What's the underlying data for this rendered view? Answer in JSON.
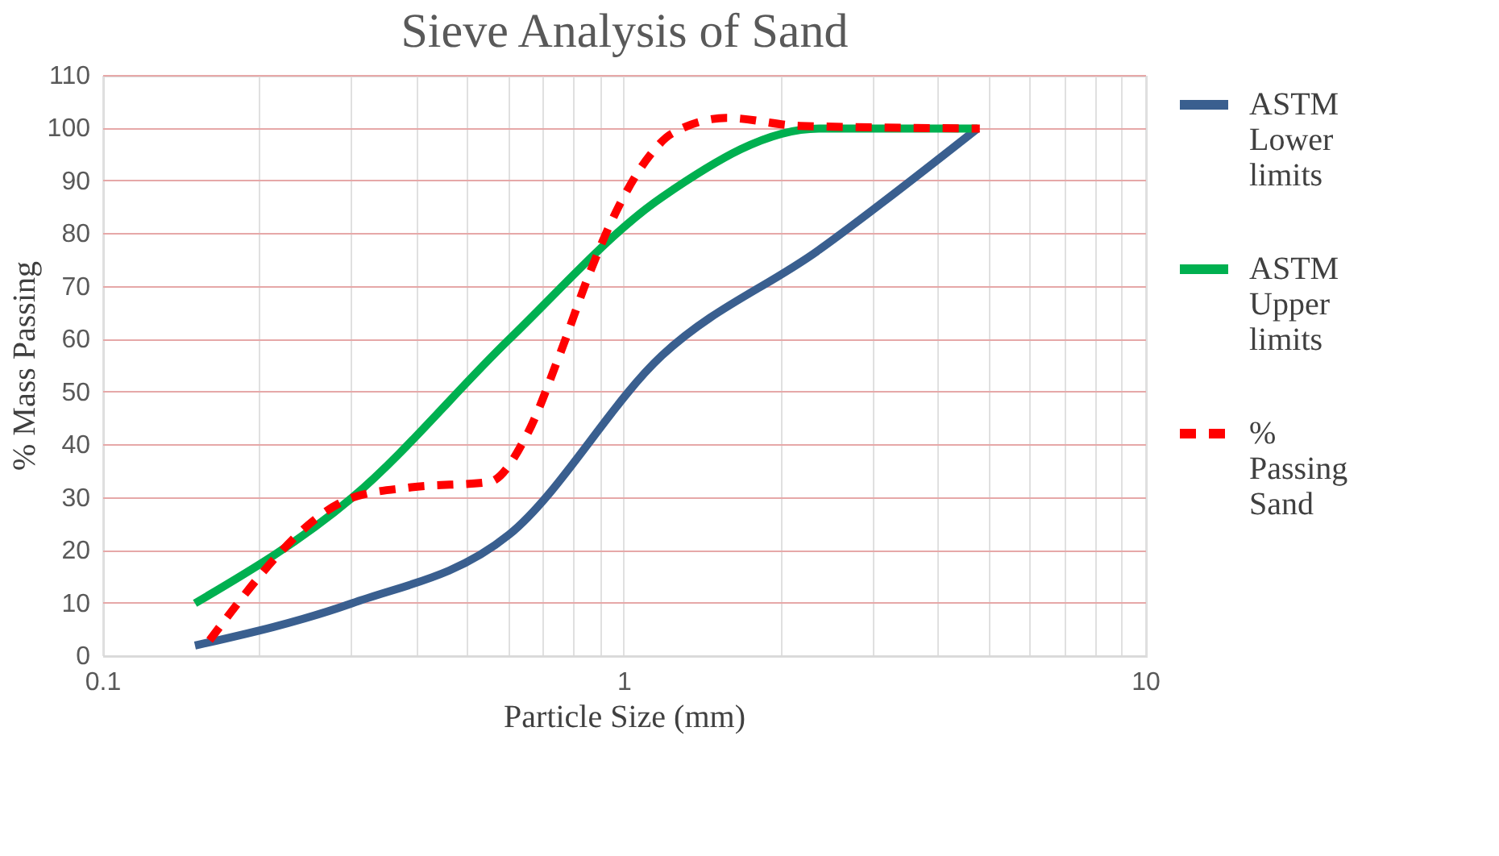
{
  "chart_data": {
    "type": "line",
    "title": "Sieve Analysis of Sand",
    "xlabel": "Particle Size (mm)",
    "ylabel": "% Mass Passing",
    "log": "x",
    "xlim": [
      0.1,
      10
    ],
    "xticks": [
      0.1,
      {
        "value": 0.2,
        "label": null
      },
      {
        "value": 0.3,
        "label": null
      },
      {
        "value": 0.4,
        "label": null
      },
      {
        "value": 0.5,
        "label": null
      },
      {
        "value": 0.6,
        "label": null
      },
      {
        "value": 0.7,
        "label": null
      },
      {
        "value": 0.8,
        "label": null
      },
      {
        "value": 0.9,
        "label": null
      },
      1,
      {
        "value": 2,
        "label": null
      },
      {
        "value": 3,
        "label": null
      },
      {
        "value": 4,
        "label": null
      },
      {
        "value": 5,
        "label": null
      },
      {
        "value": 6,
        "label": null
      },
      {
        "value": 7,
        "label": null
      },
      {
        "value": 8,
        "label": null
      },
      {
        "value": 9,
        "label": null
      },
      10
    ],
    "ylim": [
      0,
      110
    ],
    "yticks": [
      0,
      10,
      20,
      30,
      40,
      50,
      60,
      70,
      80,
      90,
      100,
      110
    ],
    "grid": true,
    "legend": "right",
    "series": [
      {
        "name": "ASTM Lower limits",
        "color": "#3a5f8f",
        "line_style": "solid",
        "x": [
          0.15,
          0.3,
          0.6,
          1.18,
          2.36,
          4.75
        ],
        "values": [
          2,
          10,
          23,
          57,
          77,
          100
        ]
      },
      {
        "name": "ASTM Upper limits",
        "color": "#00b050",
        "line_style": "solid",
        "x": [
          0.15,
          0.3,
          0.6,
          1.18,
          2.36,
          4.75
        ],
        "values": [
          10,
          30,
          60,
          87,
          100,
          100
        ]
      },
      {
        "name": "% Passing Sand",
        "color": "#ff0000",
        "line_style": "dashed",
        "x": [
          0.16,
          0.3,
          0.39,
          0.55,
          0.65,
          0.75,
          0.86,
          0.95,
          1.12,
          1.23,
          1.57,
          2.17,
          4.8
        ],
        "values": [
          3,
          30,
          32,
          33,
          42,
          57,
          73,
          83,
          95,
          99,
          102,
          100.5,
          100
        ]
      }
    ]
  }
}
